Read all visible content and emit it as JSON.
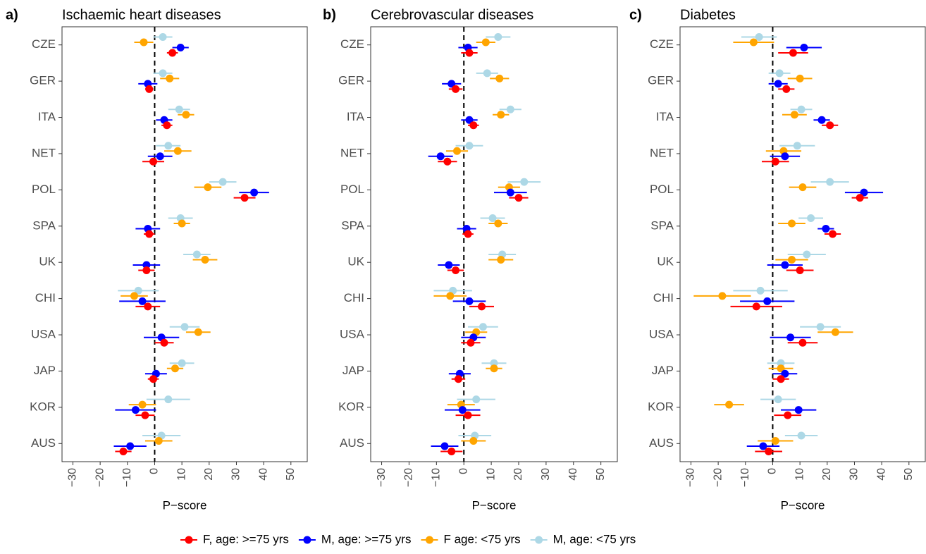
{
  "chart_data": [
    {
      "type": "forest",
      "tag": "a)",
      "title": "Ischaemic heart diseases",
      "xlabel": "P−score",
      "categories": [
        "CZE",
        "GER",
        "ITA",
        "NET",
        "POL",
        "SPA",
        "UK",
        "CHI",
        "USA",
        "JAP",
        "KOR",
        "AUS"
      ],
      "xlim": [
        -34,
        56
      ],
      "xticks": [
        {
          "value": -30,
          "label": "−30"
        },
        {
          "value": -20,
          "label": "−20"
        },
        {
          "value": -10,
          "label": "−10"
        },
        0,
        10,
        20,
        30,
        40,
        50
      ],
      "refline": 0,
      "series": [
        {
          "values": [
            6.5,
            -2,
            4.5,
            -0.5,
            33,
            -2,
            -3,
            -2.5,
            3.5,
            -0.5,
            -3.5,
            -11.5
          ],
          "errors": [
            2,
            1.5,
            2,
            4,
            4,
            2,
            3,
            4.5,
            3.5,
            2,
            3.5,
            3
          ]
        },
        {
          "values": [
            9.5,
            -2.5,
            3.5,
            2,
            36.5,
            -2.5,
            -3,
            -4.5,
            2.5,
            0.5,
            -7,
            -9
          ],
          "errors": [
            3,
            3.5,
            3,
            4.5,
            5.5,
            4.5,
            5,
            8.5,
            6.5,
            4,
            7.5,
            6
          ]
        },
        {
          "values": [
            -4,
            5.5,
            11.5,
            8.5,
            19.5,
            10,
            18.5,
            -7.5,
            16,
            7.5,
            -4.5,
            1.5
          ],
          "errors": [
            3.5,
            3.5,
            3,
            5,
            5,
            3,
            4.5,
            5,
            4.5,
            3,
            5,
            5
          ]
        },
        {
          "values": [
            3,
            3,
            9,
            5,
            25,
            9.5,
            15.5,
            -6,
            11,
            10,
            5,
            2.5
          ],
          "errors": [
            3.5,
            3.5,
            4,
            4.5,
            5,
            4.5,
            5,
            7.5,
            5.5,
            4.5,
            8,
            7
          ]
        }
      ]
    },
    {
      "type": "forest",
      "tag": "b)",
      "title": "Cerebrovascular diseases",
      "xlabel": "P−score",
      "categories": [
        "CZE",
        "GER",
        "ITA",
        "NET",
        "POL",
        "SPA",
        "UK",
        "CHI",
        "USA",
        "JAP",
        "KOR",
        "AUS"
      ],
      "xlim": [
        -34,
        56
      ],
      "xticks": [
        {
          "value": -30,
          "label": "−30"
        },
        {
          "value": -20,
          "label": "−20"
        },
        {
          "value": -10,
          "label": "−10"
        },
        0,
        10,
        20,
        30,
        40,
        50
      ],
      "refline": 0,
      "series": [
        {
          "values": [
            2,
            -3,
            3.5,
            -6,
            20,
            1.5,
            -3,
            6.5,
            2.5,
            -2,
            1.5,
            -4.5
          ],
          "errors": [
            3,
            2.5,
            2,
            3.5,
            3.5,
            2,
            3,
            4.5,
            3.5,
            2.5,
            4.5,
            4
          ]
        },
        {
          "values": [
            1.5,
            -4.5,
            2,
            -8.5,
            17,
            1,
            -5.5,
            2,
            3.5,
            -1.5,
            -0.5,
            -7
          ],
          "errors": [
            3.5,
            3.5,
            3,
            4.5,
            6,
            3.5,
            4,
            6,
            4.5,
            4,
            6.5,
            5
          ]
        },
        {
          "values": [
            8,
            13,
            13.5,
            -2.5,
            16.5,
            12.5,
            13.5,
            -5,
            4.5,
            11,
            -1,
            3.5
          ],
          "errors": [
            3.5,
            3.5,
            3,
            4,
            4,
            3.5,
            4.5,
            6,
            4,
            3,
            5,
            4.5
          ]
        },
        {
          "values": [
            12.5,
            8.5,
            17,
            2,
            22,
            10.5,
            14,
            -4,
            7,
            11,
            4.5,
            4
          ],
          "errors": [
            4.5,
            4,
            4,
            5,
            6,
            4.5,
            5,
            7,
            5.5,
            4.5,
            7,
            6
          ]
        }
      ]
    },
    {
      "type": "forest",
      "tag": "c)",
      "title": "Diabetes",
      "xlabel": "P−score",
      "categories": [
        "CZE",
        "GER",
        "ITA",
        "NET",
        "POL",
        "SPA",
        "UK",
        "CHI",
        "USA",
        "JAP",
        "KOR",
        "AUS"
      ],
      "xlim": [
        -34,
        56
      ],
      "xticks": [
        {
          "value": -30,
          "label": "−30"
        },
        {
          "value": -20,
          "label": "−20"
        },
        {
          "value": -10,
          "label": "−10"
        },
        0,
        10,
        20,
        30,
        40,
        50
      ],
      "refline": 0,
      "series": [
        {
          "values": [
            7.5,
            5,
            21,
            1,
            32,
            22,
            10,
            -6,
            11,
            3,
            5.5,
            -1.5
          ],
          "errors": [
            5.5,
            3,
            3,
            5,
            3,
            3,
            5,
            9.5,
            5.5,
            3,
            5,
            5
          ]
        },
        {
          "values": [
            11.5,
            2,
            18,
            4.5,
            33.5,
            19.5,
            4.5,
            -2,
            6.5,
            4.5,
            9.5,
            -3.5
          ],
          "errors": [
            6.5,
            3.5,
            3,
            5.5,
            7,
            3,
            6.5,
            10,
            7.5,
            4.5,
            6.5,
            6
          ]
        },
        {
          "values": [
            -7,
            10,
            8,
            4,
            11,
            7,
            7,
            -18.5,
            23,
            3,
            -16,
            1
          ],
          "errors": [
            7.5,
            4.5,
            4.5,
            6.5,
            5,
            5,
            6,
            10.5,
            6.5,
            4.5,
            5.5,
            6.5
          ]
        },
        {
          "values": [
            -5,
            2.5,
            10.5,
            9,
            21,
            14,
            12.5,
            -4.5,
            17.5,
            3,
            2,
            10.5
          ],
          "errors": [
            6.5,
            4,
            4,
            6.5,
            7,
            4.5,
            7,
            10,
            7.5,
            5,
            6.5,
            6
          ]
        }
      ]
    }
  ],
  "legend": [
    {
      "name": "F, age: >=75 yrs",
      "color": "#ff0000"
    },
    {
      "name": "M, age: >=75 yrs",
      "color": "#0000ff"
    },
    {
      "name": "F age: <75 yrs",
      "color": "#ffa500"
    },
    {
      "name": "M, age: <75 yrs",
      "color": "#add8e6"
    }
  ]
}
